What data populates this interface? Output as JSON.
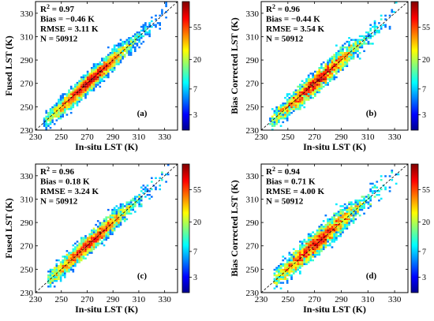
{
  "chart_data": [
    {
      "type": "heatmap",
      "panel_label": "(a)",
      "xlabel": "In-situ LST (K)",
      "ylabel": "Fused LST (K)",
      "xlim": [
        230,
        340
      ],
      "ylim": [
        230,
        340
      ],
      "x_ticks": [
        230,
        250,
        270,
        290,
        310,
        330
      ],
      "y_ticks": [
        230,
        250,
        270,
        290,
        310,
        330
      ],
      "stats": [
        "R",
        "Bias = −0.46 K",
        "RMSE = 3.11 K",
        "N = 50912"
      ],
      "r2": {
        "base": "R",
        "sup": "2",
        "value": " = 0.97"
      },
      "colorbar_ticks": [
        "55",
        "20",
        "7",
        "3"
      ],
      "density": {
        "x_range": [
          237,
          333
        ],
        "bias": -0.46,
        "rmse": 3.11
      }
    },
    {
      "type": "heatmap",
      "panel_label": "(b)",
      "xlabel": "In-situ LST (K)",
      "ylabel": "Bias Corrected LST (K)",
      "xlim": [
        230,
        340
      ],
      "ylim": [
        230,
        340
      ],
      "x_ticks": [
        230,
        250,
        270,
        290,
        310,
        330
      ],
      "y_ticks": [
        230,
        250,
        270,
        290,
        310,
        330
      ],
      "stats": [
        "R",
        "Bias = −0.44 K",
        "RMSE = 3.54 K",
        "N = 50912"
      ],
      "r2": {
        "base": "R",
        "sup": "2",
        "value": " = 0.96"
      },
      "colorbar_ticks": [
        "55",
        "20",
        "7",
        "3"
      ],
      "density": {
        "x_range": [
          237,
          333
        ],
        "bias": -0.44,
        "rmse": 3.54
      }
    },
    {
      "type": "heatmap",
      "panel_label": "(c)",
      "xlabel": "In-situ LST (K)",
      "ylabel": "Fused LST (K)",
      "xlim": [
        230,
        340
      ],
      "ylim": [
        230,
        340
      ],
      "x_ticks": [
        230,
        250,
        270,
        290,
        310,
        330
      ],
      "y_ticks": [
        230,
        250,
        270,
        290,
        310,
        330
      ],
      "stats": [
        "R",
        "Bias = 0.18 K",
        "RMSE = 3.24 K",
        "N = 50912"
      ],
      "r2": {
        "base": "R",
        "sup": "2",
        "value": " = 0.96"
      },
      "colorbar_ticks": [
        "55",
        "20",
        "7",
        "3"
      ],
      "density": {
        "x_range": [
          240,
          333
        ],
        "bias": 0.18,
        "rmse": 3.24
      }
    },
    {
      "type": "heatmap",
      "panel_label": "(d)",
      "xlabel": "In-situ LST (K)",
      "ylabel": "Bias Corrected LST (K)",
      "xlim": [
        230,
        340
      ],
      "ylim": [
        230,
        340
      ],
      "x_ticks": [
        230,
        250,
        270,
        290,
        310,
        330
      ],
      "y_ticks": [
        230,
        250,
        270,
        290,
        310,
        330
      ],
      "stats": [
        "R",
        "Bias = 0.71 K",
        "RMSE = 4.00 K",
        "N = 50912"
      ],
      "r2": {
        "base": "R",
        "sup": "2",
        "value": " = 0.94"
      },
      "colorbar_ticks": [
        "55",
        "20",
        "7",
        "3"
      ],
      "density": {
        "x_range": [
          240,
          333
        ],
        "bias": 0.71,
        "rmse": 4.0
      }
    }
  ],
  "colors": {
    "colormap": [
      "#00008f",
      "#0000ff",
      "#00ffff",
      "#ffff00",
      "#ff0000",
      "#800000"
    ],
    "one_to_one_line": "#000000"
  }
}
